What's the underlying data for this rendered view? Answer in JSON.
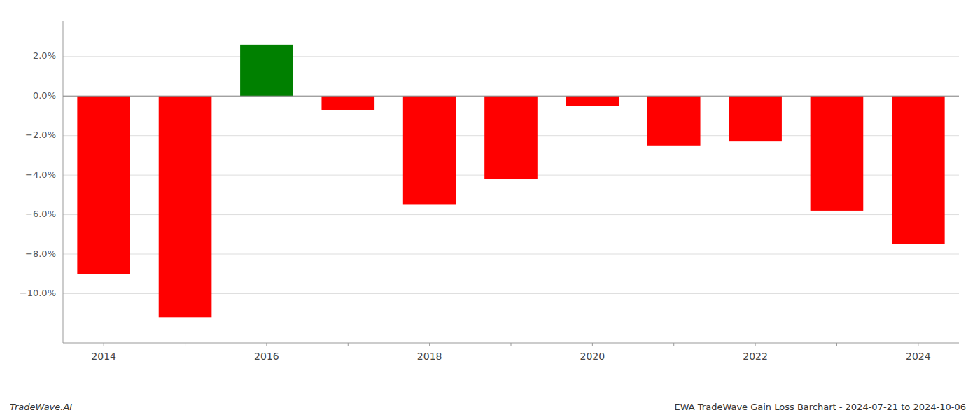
{
  "chart_data": {
    "type": "bar",
    "title": "EWA TradeWave Gain Loss Barchart - 2024-07-21 to 2024-10-06",
    "annotations": [
      "TradeWave.AI"
    ],
    "categories": [
      "2014",
      null,
      "2016",
      null,
      "2018",
      null,
      "2020",
      null,
      "2022",
      null,
      "2024"
    ],
    "values": [
      -9.0,
      -11.2,
      2.6,
      -0.7,
      -5.5,
      -4.2,
      -0.5,
      -2.5,
      -2.3,
      -5.8,
      -7.5
    ],
    "colors": [
      "#ff0000",
      "#ff0000",
      "#008000",
      "#ff0000",
      "#ff0000",
      "#ff0000",
      "#ff0000",
      "#ff0000",
      "#ff0000",
      "#ff0000",
      "#ff0000"
    ],
    "ylim": [
      -12.5,
      3.8
    ],
    "yticks": [
      {
        "value": -10.0,
        "label": "−10.0%"
      },
      {
        "value": -8.0,
        "label": "−8.0%"
      },
      {
        "value": -6.0,
        "label": "−6.0%"
      },
      {
        "value": -4.0,
        "label": "−4.0%"
      },
      {
        "value": -2.0,
        "label": "−2.0%"
      },
      {
        "value": 0.0,
        "label": "0.0%"
      },
      {
        "value": 2.0,
        "label": "2.0%"
      }
    ],
    "grid": true
  }
}
